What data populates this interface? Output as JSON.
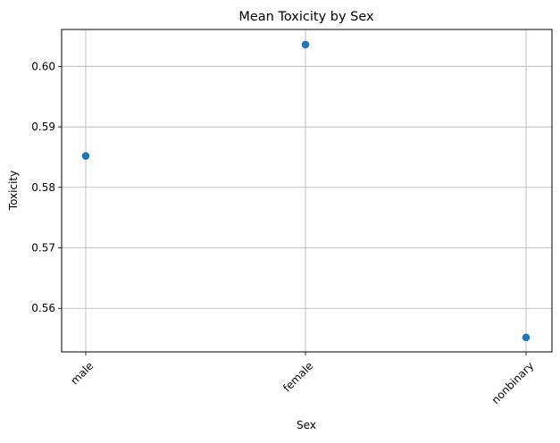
{
  "chart_data": {
    "type": "scatter",
    "title": "Mean Toxicity by Sex",
    "xlabel": "Sex",
    "ylabel": "Toxicity",
    "categories": [
      "male",
      "female",
      "nonbinary"
    ],
    "values": [
      0.5852,
      0.6036,
      0.5552
    ],
    "ylim": [
      0.5528,
      0.6061
    ],
    "yticks": [
      "0.56",
      "0.57",
      "0.58",
      "0.59",
      "0.60"
    ],
    "ytick_values": [
      0.56,
      0.57,
      0.58,
      0.59,
      0.6
    ],
    "grid": true,
    "x_tick_rotation": 45,
    "marker_color": "#1f77b4"
  }
}
